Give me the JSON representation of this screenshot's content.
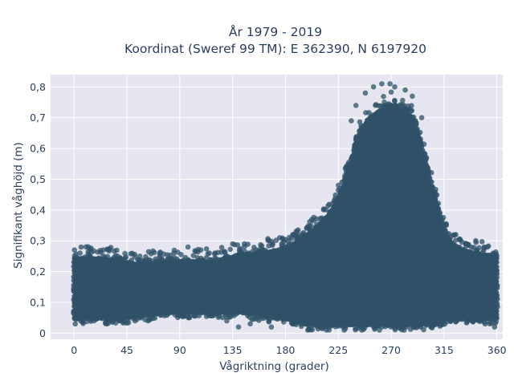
{
  "chart_data": {
    "type": "scatter",
    "title": "År 1979 - 2019",
    "subtitle": "Koordinat (Sweref 99 TM): E 362390, N 6197920",
    "xlabel": "Vågriktning (grader)",
    "ylabel": "Signifikant våghöjd (m)",
    "xlim": [
      -20,
      365
    ],
    "ylim": [
      -0.02,
      0.84
    ],
    "x_ticks": [
      0,
      45,
      90,
      135,
      180,
      225,
      270,
      315,
      360
    ],
    "x_tick_labels": [
      "0",
      "45",
      "90",
      "135",
      "180",
      "225",
      "270",
      "315",
      "360"
    ],
    "y_ticks": [
      0,
      0.1,
      0.2,
      0.3,
      0.4,
      0.5,
      0.6,
      0.7,
      0.8
    ],
    "y_tick_labels": [
      "0",
      "0,1",
      "0,2",
      "0,3",
      "0,4",
      "0,5",
      "0,6",
      "0,7",
      "0,8"
    ],
    "grid": true,
    "marker_color": "#2f5168",
    "plot_bg": "#e5e6ef",
    "grid_color": "#ffffff",
    "envelope": {
      "direction": [
        0,
        20,
        40,
        60,
        80,
        100,
        120,
        140,
        160,
        180,
        190,
        200,
        210,
        220,
        230,
        240,
        250,
        260,
        270,
        280,
        290,
        300,
        310,
        320,
        330,
        340,
        350,
        360
      ],
      "upper": [
        0.24,
        0.24,
        0.23,
        0.22,
        0.23,
        0.23,
        0.23,
        0.25,
        0.26,
        0.27,
        0.29,
        0.32,
        0.35,
        0.4,
        0.48,
        0.62,
        0.69,
        0.72,
        0.74,
        0.72,
        0.69,
        0.55,
        0.4,
        0.29,
        0.27,
        0.26,
        0.25,
        0.24
      ],
      "lower": [
        0.05,
        0.05,
        0.05,
        0.06,
        0.07,
        0.07,
        0.07,
        0.07,
        0.06,
        0.05,
        0.04,
        0.03,
        0.03,
        0.03,
        0.03,
        0.03,
        0.03,
        0.03,
        0.03,
        0.03,
        0.03,
        0.03,
        0.04,
        0.05,
        0.05,
        0.05,
        0.05,
        0.05
      ]
    },
    "outliers": [
      {
        "x": 255,
        "y": 0.8
      },
      {
        "x": 262,
        "y": 0.81
      },
      {
        "x": 269,
        "y": 0.81
      },
      {
        "x": 273,
        "y": 0.8
      },
      {
        "x": 282,
        "y": 0.79
      },
      {
        "x": 248,
        "y": 0.78
      },
      {
        "x": 288,
        "y": 0.77
      },
      {
        "x": 240,
        "y": 0.74
      },
      {
        "x": 236,
        "y": 0.69
      },
      {
        "x": 296,
        "y": 0.7
      },
      {
        "x": 225,
        "y": 0.48
      },
      {
        "x": 300,
        "y": 0.57
      },
      {
        "x": 342,
        "y": 0.3
      },
      {
        "x": 352,
        "y": 0.28
      },
      {
        "x": 325,
        "y": 0.32
      },
      {
        "x": 175,
        "y": 0.31
      },
      {
        "x": 190,
        "y": 0.33
      },
      {
        "x": 166,
        "y": 0.3
      },
      {
        "x": 145,
        "y": 0.29
      },
      {
        "x": 135,
        "y": 0.29
      },
      {
        "x": 108,
        "y": 0.27
      },
      {
        "x": 97,
        "y": 0.28
      },
      {
        "x": 85,
        "y": 0.26
      },
      {
        "x": 73,
        "y": 0.26
      },
      {
        "x": 25,
        "y": 0.27
      },
      {
        "x": 5,
        "y": 0.26
      },
      {
        "x": 37,
        "y": 0.25
      },
      {
        "x": 56,
        "y": 0.25
      },
      {
        "x": 120,
        "y": 0.26
      },
      {
        "x": 155,
        "y": 0.27
      },
      {
        "x": 200,
        "y": 0.34
      },
      {
        "x": 210,
        "y": 0.36
      },
      {
        "x": 1,
        "y": 0.03
      },
      {
        "x": 17,
        "y": 0.04
      },
      {
        "x": 28,
        "y": 0.03
      },
      {
        "x": 52,
        "y": 0.04
      },
      {
        "x": 63,
        "y": 0.04
      },
      {
        "x": 98,
        "y": 0.05
      },
      {
        "x": 130,
        "y": 0.04
      },
      {
        "x": 140,
        "y": 0.02
      },
      {
        "x": 150,
        "y": 0.03
      },
      {
        "x": 168,
        "y": 0.02
      },
      {
        "x": 186,
        "y": 0.03
      },
      {
        "x": 199,
        "y": 0.01
      },
      {
        "x": 215,
        "y": 0.01
      },
      {
        "x": 230,
        "y": 0.01
      },
      {
        "x": 245,
        "y": 0.01
      },
      {
        "x": 260,
        "y": 0.01
      },
      {
        "x": 281,
        "y": 0.01
      },
      {
        "x": 295,
        "y": 0.02
      },
      {
        "x": 310,
        "y": 0.03
      },
      {
        "x": 320,
        "y": 0.04
      },
      {
        "x": 335,
        "y": 0.04
      },
      {
        "x": 350,
        "y": 0.03
      },
      {
        "x": 358,
        "y": 0.02
      }
    ]
  }
}
